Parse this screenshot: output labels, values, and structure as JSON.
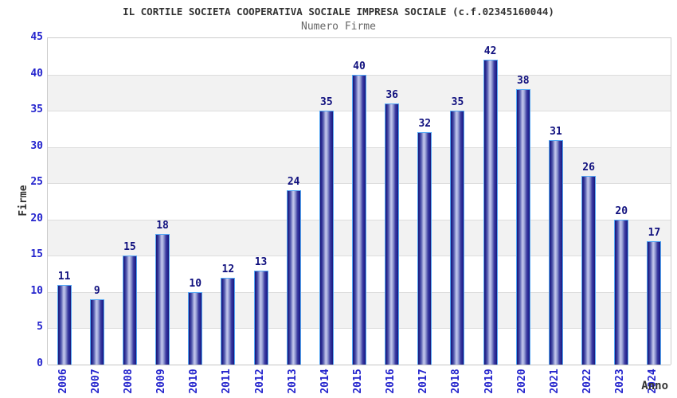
{
  "title": "IL CORTILE SOCIETA COOPERATIVA SOCIALE IMPRESA SOCIALE (c.f.02345160044)",
  "subtitle": "Numero Firme",
  "chart_data": {
    "type": "bar",
    "categories": [
      "2006",
      "2007",
      "2008",
      "2009",
      "2010",
      "2011",
      "2012",
      "2013",
      "2014",
      "2015",
      "2016",
      "2017",
      "2018",
      "2019",
      "2020",
      "2021",
      "2022",
      "2023",
      "2024"
    ],
    "values": [
      11,
      9,
      15,
      18,
      10,
      12,
      13,
      24,
      35,
      40,
      36,
      32,
      35,
      42,
      38,
      31,
      26,
      20,
      17
    ],
    "title": "Numero Firme",
    "xlabel": "Anno",
    "ylabel": "Firme",
    "ylim": [
      0,
      45
    ],
    "ytick_step": 5,
    "grid": "horizontal-bands",
    "legend": "none"
  },
  "colors": {
    "bar_edge": "#55a8f5",
    "bar_dark": "#191974",
    "bar_light": "#c2c6ec",
    "tick_label_blue": "#2424cd",
    "value_label_navy": "#10107e",
    "title_color": "#333333",
    "subtitle_color": "#666666",
    "band_gray": "#f2f2f2",
    "grid_line": "#dddddd"
  }
}
